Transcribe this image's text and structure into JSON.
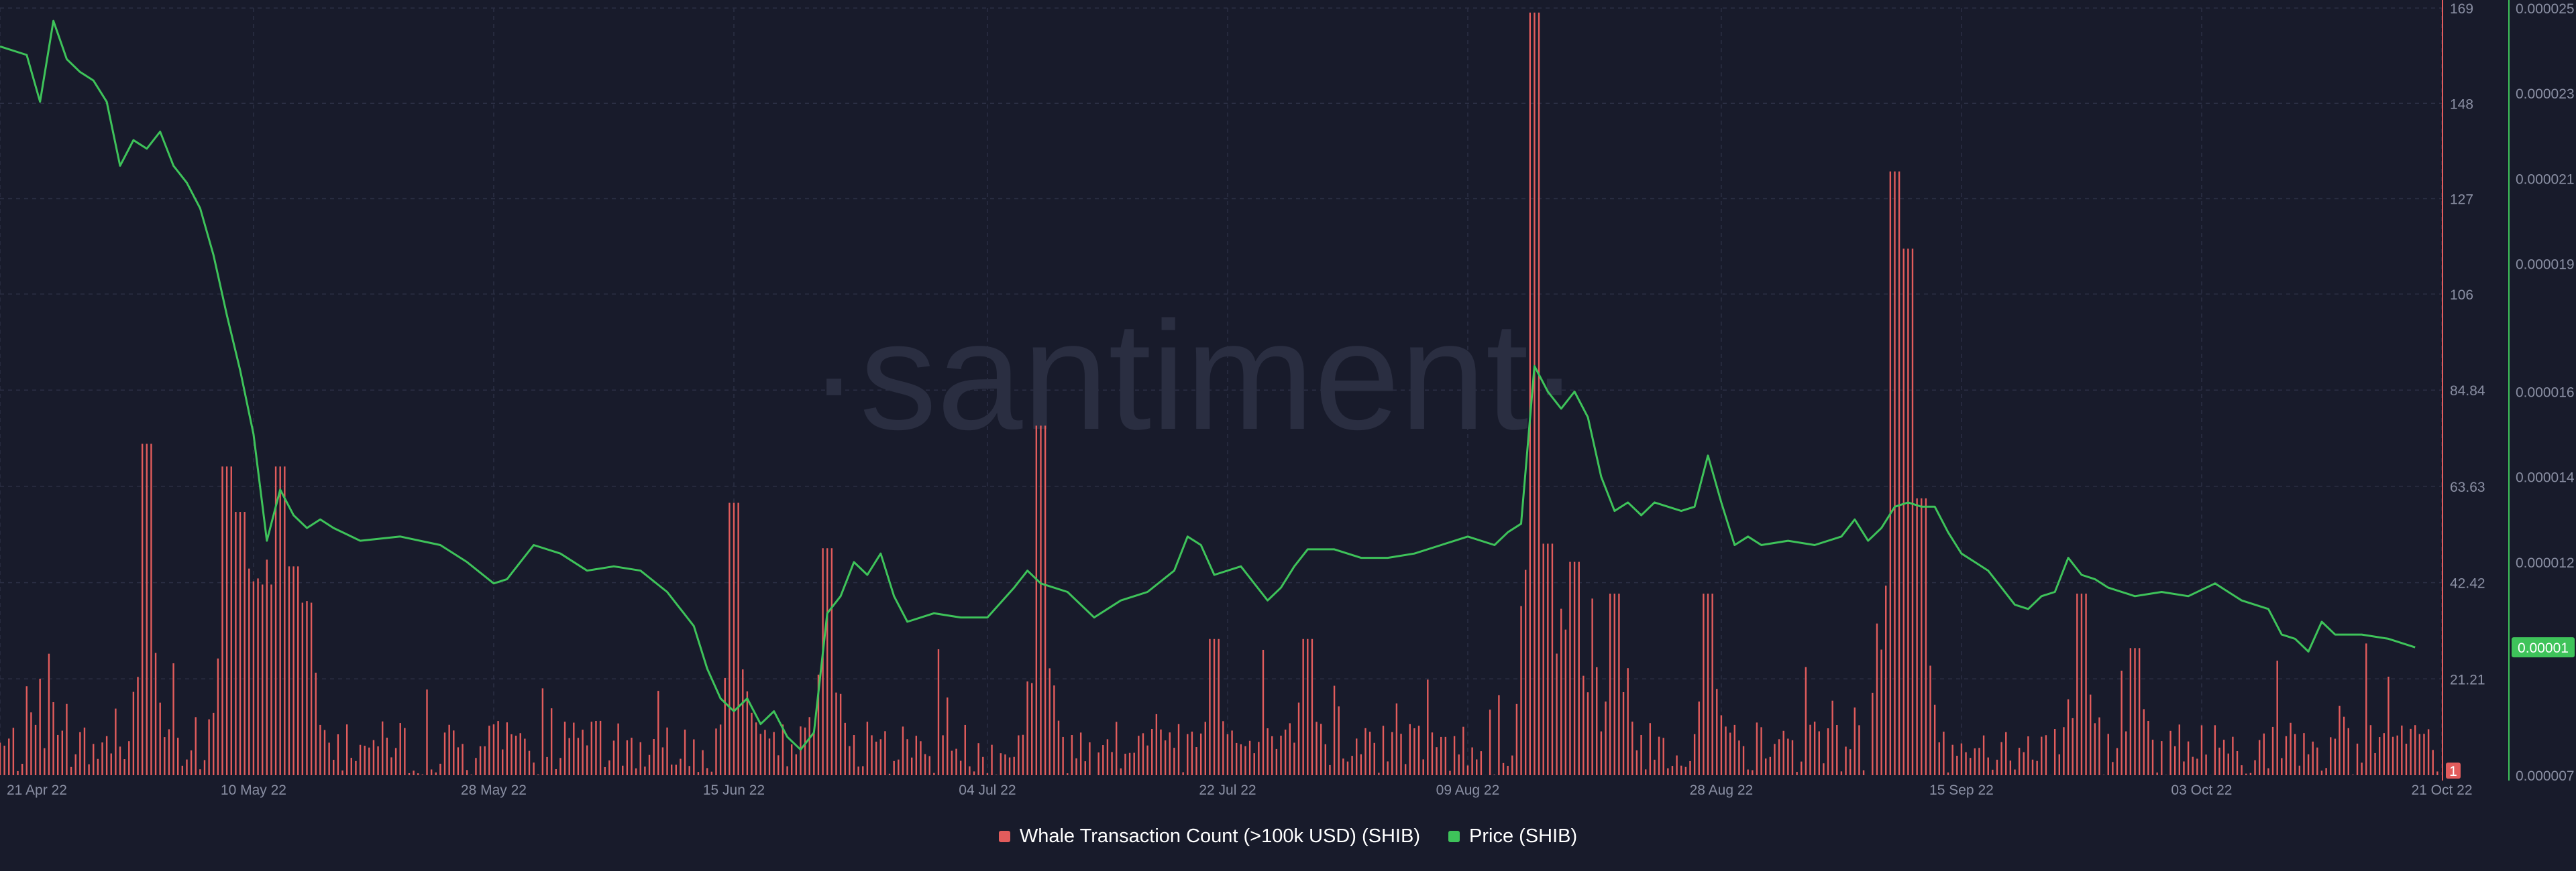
{
  "chart_data": {
    "type": "bar+line",
    "watermark": "·santiment·",
    "x_tick_labels": [
      "21 Apr 22",
      "10 May 22",
      "28 May 22",
      "15 Jun 22",
      "04 Jul 22",
      "22 Jul 22",
      "09 Aug 22",
      "28 Aug 22",
      "15 Sep 22",
      "03 Oct 22",
      "21 Oct 22"
    ],
    "x_tick_days": [
      0,
      19,
      37,
      55,
      74,
      92,
      110,
      129,
      147,
      165,
      183
    ],
    "left_axis": {
      "label": "Whale Transaction Count (>100k USD) (SHIB)",
      "ticks": [
        "169",
        "148",
        "127",
        "106",
        "84.84",
        "63.63",
        "42.42",
        "21.21"
      ],
      "tick_values": [
        169,
        148,
        127,
        106,
        84.84,
        63.63,
        42.42,
        21.21
      ],
      "ylim": [
        0,
        169
      ],
      "current_value": "1"
    },
    "right_axis": {
      "label": "Price (SHIB)",
      "ticks": [
        "0.000025",
        "0.000023",
        "0.000021",
        "0.000019",
        "0.000016",
        "0.000014",
        "0.000012",
        "0.00001",
        "0.000007"
      ],
      "tick_values": [
        2.5e-05,
        2.3e-05,
        2.1e-05,
        1.9e-05,
        1.6e-05,
        1.4e-05,
        1.2e-05,
        1e-05,
        7e-06
      ],
      "ylim": [
        7e-06,
        2.5e-05
      ],
      "current_value": "0.00001"
    },
    "series": [
      {
        "name": "Whale Transaction Count (>100k USD) (SHIB)",
        "color": "#e25c5c",
        "type": "bar",
        "peaks": [
          {
            "day": 11,
            "value": 73
          },
          {
            "day": 17,
            "value": 68
          },
          {
            "day": 18,
            "value": 58
          },
          {
            "day": 20,
            "value": 42
          },
          {
            "day": 21,
            "value": 68
          },
          {
            "day": 22,
            "value": 46
          },
          {
            "day": 23,
            "value": 38
          },
          {
            "day": 55,
            "value": 60
          },
          {
            "day": 62,
            "value": 50
          },
          {
            "day": 78,
            "value": 77
          },
          {
            "day": 91,
            "value": 30
          },
          {
            "day": 98,
            "value": 30
          },
          {
            "day": 115,
            "value": 168
          },
          {
            "day": 116,
            "value": 51
          },
          {
            "day": 118,
            "value": 47
          },
          {
            "day": 121,
            "value": 40
          },
          {
            "day": 128,
            "value": 40
          },
          {
            "day": 142,
            "value": 133
          },
          {
            "day": 143,
            "value": 116
          },
          {
            "day": 144,
            "value": 61
          },
          {
            "day": 156,
            "value": 40
          },
          {
            "day": 160,
            "value": 28
          }
        ]
      },
      {
        "name": "Price (SHIB)",
        "color": "#3ec35a",
        "type": "line",
        "points": [
          [
            0,
            2.41e-05
          ],
          [
            2,
            2.39e-05
          ],
          [
            3,
            2.28e-05
          ],
          [
            4,
            2.47e-05
          ],
          [
            5,
            2.38e-05
          ],
          [
            6,
            2.35e-05
          ],
          [
            7,
            2.33e-05
          ],
          [
            8,
            2.28e-05
          ],
          [
            9,
            2.13e-05
          ],
          [
            10,
            2.19e-05
          ],
          [
            11,
            2.17e-05
          ],
          [
            12,
            2.21e-05
          ],
          [
            13,
            2.13e-05
          ],
          [
            14,
            2.09e-05
          ],
          [
            15,
            2.03e-05
          ],
          [
            16,
            1.92e-05
          ],
          [
            17,
            1.78e-05
          ],
          [
            18,
            1.65e-05
          ],
          [
            19,
            1.5e-05
          ],
          [
            20,
            1.25e-05
          ],
          [
            21,
            1.37e-05
          ],
          [
            22,
            1.31e-05
          ],
          [
            23,
            1.28e-05
          ],
          [
            24,
            1.3e-05
          ],
          [
            25,
            1.28e-05
          ],
          [
            27,
            1.25e-05
          ],
          [
            30,
            1.26e-05
          ],
          [
            33,
            1.24e-05
          ],
          [
            35,
            1.2e-05
          ],
          [
            37,
            1.15e-05
          ],
          [
            38,
            1.16e-05
          ],
          [
            40,
            1.24e-05
          ],
          [
            42,
            1.22e-05
          ],
          [
            44,
            1.18e-05
          ],
          [
            46,
            1.19e-05
          ],
          [
            48,
            1.18e-05
          ],
          [
            50,
            1.13e-05
          ],
          [
            52,
            1.05e-05
          ],
          [
            53,
            9.5e-06
          ],
          [
            54,
            8.8e-06
          ],
          [
            55,
            8.5e-06
          ],
          [
            56,
            8.8e-06
          ],
          [
            57,
            8.2e-06
          ],
          [
            58,
            8.5e-06
          ],
          [
            59,
            7.9e-06
          ],
          [
            60,
            7.6e-06
          ],
          [
            61,
            8e-06
          ],
          [
            62,
            1.08e-05
          ],
          [
            63,
            1.12e-05
          ],
          [
            64,
            1.2e-05
          ],
          [
            65,
            1.17e-05
          ],
          [
            66,
            1.22e-05
          ],
          [
            67,
            1.12e-05
          ],
          [
            68,
            1.06e-05
          ],
          [
            70,
            1.08e-05
          ],
          [
            72,
            1.07e-05
          ],
          [
            74,
            1.07e-05
          ],
          [
            76,
            1.14e-05
          ],
          [
            77,
            1.18e-05
          ],
          [
            78,
            1.15e-05
          ],
          [
            80,
            1.13e-05
          ],
          [
            82,
            1.07e-05
          ],
          [
            84,
            1.11e-05
          ],
          [
            86,
            1.13e-05
          ],
          [
            88,
            1.18e-05
          ],
          [
            89,
            1.26e-05
          ],
          [
            90,
            1.24e-05
          ],
          [
            91,
            1.17e-05
          ],
          [
            93,
            1.19e-05
          ],
          [
            94,
            1.15e-05
          ],
          [
            95,
            1.11e-05
          ],
          [
            96,
            1.14e-05
          ],
          [
            97,
            1.19e-05
          ],
          [
            98,
            1.23e-05
          ],
          [
            100,
            1.23e-05
          ],
          [
            102,
            1.21e-05
          ],
          [
            104,
            1.21e-05
          ],
          [
            106,
            1.22e-05
          ],
          [
            108,
            1.24e-05
          ],
          [
            110,
            1.26e-05
          ],
          [
            112,
            1.24e-05
          ],
          [
            113,
            1.27e-05
          ],
          [
            114,
            1.29e-05
          ],
          [
            115,
            1.66e-05
          ],
          [
            116,
            1.6e-05
          ],
          [
            117,
            1.56e-05
          ],
          [
            118,
            1.6e-05
          ],
          [
            119,
            1.54e-05
          ],
          [
            120,
            1.4e-05
          ],
          [
            121,
            1.32e-05
          ],
          [
            122,
            1.34e-05
          ],
          [
            123,
            1.31e-05
          ],
          [
            124,
            1.34e-05
          ],
          [
            126,
            1.32e-05
          ],
          [
            127,
            1.33e-05
          ],
          [
            128,
            1.45e-05
          ],
          [
            129,
            1.34e-05
          ],
          [
            130,
            1.24e-05
          ],
          [
            131,
            1.26e-05
          ],
          [
            132,
            1.24e-05
          ],
          [
            134,
            1.25e-05
          ],
          [
            136,
            1.24e-05
          ],
          [
            138,
            1.26e-05
          ],
          [
            139,
            1.3e-05
          ],
          [
            140,
            1.25e-05
          ],
          [
            141,
            1.28e-05
          ],
          [
            142,
            1.33e-05
          ],
          [
            143,
            1.34e-05
          ],
          [
            144,
            1.33e-05
          ],
          [
            145,
            1.33e-05
          ],
          [
            146,
            1.27e-05
          ],
          [
            147,
            1.22e-05
          ],
          [
            148,
            1.2e-05
          ],
          [
            149,
            1.18e-05
          ],
          [
            150,
            1.14e-05
          ],
          [
            151,
            1.1e-05
          ],
          [
            152,
            1.09e-05
          ],
          [
            153,
            1.12e-05
          ],
          [
            154,
            1.13e-05
          ],
          [
            155,
            1.21e-05
          ],
          [
            156,
            1.17e-05
          ],
          [
            157,
            1.16e-05
          ],
          [
            158,
            1.14e-05
          ],
          [
            160,
            1.12e-05
          ],
          [
            162,
            1.13e-05
          ],
          [
            164,
            1.12e-05
          ],
          [
            166,
            1.15e-05
          ],
          [
            167,
            1.13e-05
          ],
          [
            168,
            1.11e-05
          ],
          [
            170,
            1.09e-05
          ],
          [
            171,
            1.03e-05
          ],
          [
            172,
            1.02e-05
          ],
          [
            173,
            9.9e-06
          ],
          [
            174,
            1.06e-05
          ],
          [
            175,
            1.03e-05
          ],
          [
            177,
            1.03e-05
          ],
          [
            179,
            1.02e-05
          ],
          [
            180,
            1.01e-05
          ],
          [
            181,
            1e-05
          ]
        ]
      }
    ],
    "legend_position": "bottom-center",
    "grid": true
  },
  "colors": {
    "background": "#181b2b",
    "grid": "#2b2f44",
    "axis_text": "#8a8fa3",
    "bar": "#e25c5c",
    "line": "#3ec35a"
  }
}
